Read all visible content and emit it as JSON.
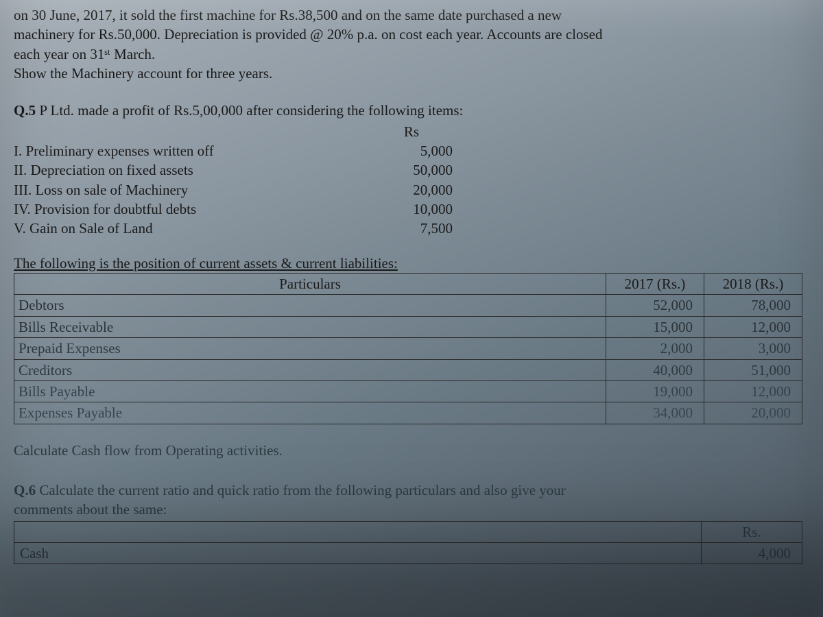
{
  "top": {
    "line1": "on 30 June, 2017, it sold the first machine for Rs.38,500 and on the same date purchased a new",
    "line2": "machinery for Rs.50,000. Depreciation is provided @ 20% p.a. on cost each year. Accounts are closed",
    "line3": "each year on 31ˢᵗ March.",
    "line4": "Show the Machinery account for three years."
  },
  "q5": {
    "label": "Q.5",
    "intro": "P Ltd. made a profit of Rs.5,00,000 after considering the following items:",
    "rs_header": "Rs",
    "items": [
      {
        "label": "I. Preliminary expenses written off",
        "value": "5,000"
      },
      {
        "label": "II. Depreciation on fixed assets",
        "value": "50,000"
      },
      {
        "label": "III. Loss on sale of Machinery",
        "value": "20,000"
      },
      {
        "label": "IV. Provision for doubtful debts",
        "value": "10,000"
      },
      {
        "label": "V. Gain on Sale of Land",
        "value": "7,500"
      }
    ],
    "table_intro": "The following is the position of current assets & current liabilities:",
    "table": {
      "headers": {
        "particulars": "Particulars",
        "y2017": "2017 (Rs.)",
        "y2018": "2018 (Rs.)"
      },
      "rows": [
        {
          "label": "Debtors",
          "y2017": "52,000",
          "y2018": "78,000"
        },
        {
          "label": "Bills Receivable",
          "y2017": "15,000",
          "y2018": "12,000"
        },
        {
          "label": "Prepaid Expenses",
          "y2017": "2,000",
          "y2018": "3,000"
        },
        {
          "label": "Creditors",
          "y2017": "40,000",
          "y2018": "51,000"
        },
        {
          "label": "Bills Payable",
          "y2017": "19,000",
          "y2018": "12,000"
        },
        {
          "label": "Expenses Payable",
          "y2017": "34,000",
          "y2018": "20,000"
        }
      ]
    },
    "instruction": "Calculate Cash flow from Operating activities."
  },
  "q6": {
    "label": "Q.6",
    "intro1": "Calculate the current ratio and quick ratio from the following particulars and also give your",
    "intro2": "comments about the same:",
    "rs_header": "Rs.",
    "row1": {
      "label": "Cash",
      "value": "4,000"
    }
  }
}
